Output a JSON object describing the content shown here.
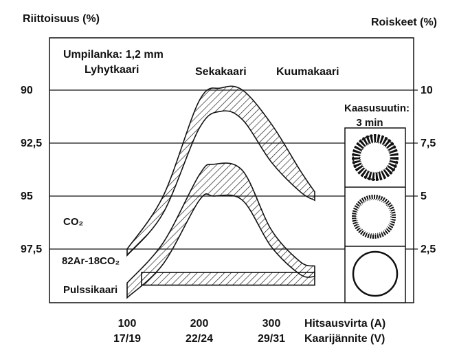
{
  "chart_data": {
    "type": "area",
    "title": "Umpilanka: 1,2 mm",
    "left_axis_label": "Riittoisuus (%)",
    "right_axis_label": "Roiskeet (%)",
    "left_ticks": [
      "90",
      "92,5",
      "95",
      "97,5"
    ],
    "right_ticks": [
      "10",
      "7,5",
      "5",
      "2,5"
    ],
    "x_axis_label": "Hitsausvirta (A)",
    "x_axis_label2": "Kaarijännite (V)",
    "x_ticks": [
      "100",
      "200",
      "300"
    ],
    "x_ticks2": [
      "17/19",
      "22/24",
      "29/31"
    ],
    "arc_regions": [
      "Lyhytkaari",
      "Sekakaari",
      "Kuumakaari"
    ],
    "nozzle_label": "Kaasusuutin:",
    "nozzle_time": "3 min",
    "series": [
      {
        "name": "CO2",
        "display": "CO₂",
        "x": [
          100,
          150,
          200,
          230,
          260,
          300,
          340,
          360
        ],
        "spatter_low": [
          2.2,
          4.2,
          8.2,
          9.0,
          8.6,
          6.6,
          5.2,
          4.8
        ],
        "spatter_high": [
          2.5,
          5.0,
          9.5,
          10.1,
          10.0,
          8.4,
          6.2,
          5.2
        ]
      },
      {
        "name": "82Ar-18CO2",
        "display": "82Ar-18CO₂",
        "x": [
          100,
          150,
          200,
          220,
          260,
          300,
          340,
          360
        ],
        "spatter_low": [
          0.2,
          1.8,
          4.8,
          5.0,
          4.8,
          2.6,
          1.3,
          1.2
        ],
        "spatter_high": [
          0.9,
          2.8,
          6.0,
          6.5,
          6.2,
          3.4,
          1.9,
          1.7
        ]
      },
      {
        "name": "Pulssikaari",
        "x": [
          120,
          360
        ],
        "spatter_low": [
          0.8,
          0.8
        ],
        "spatter_high": [
          1.4,
          1.4
        ]
      }
    ]
  }
}
